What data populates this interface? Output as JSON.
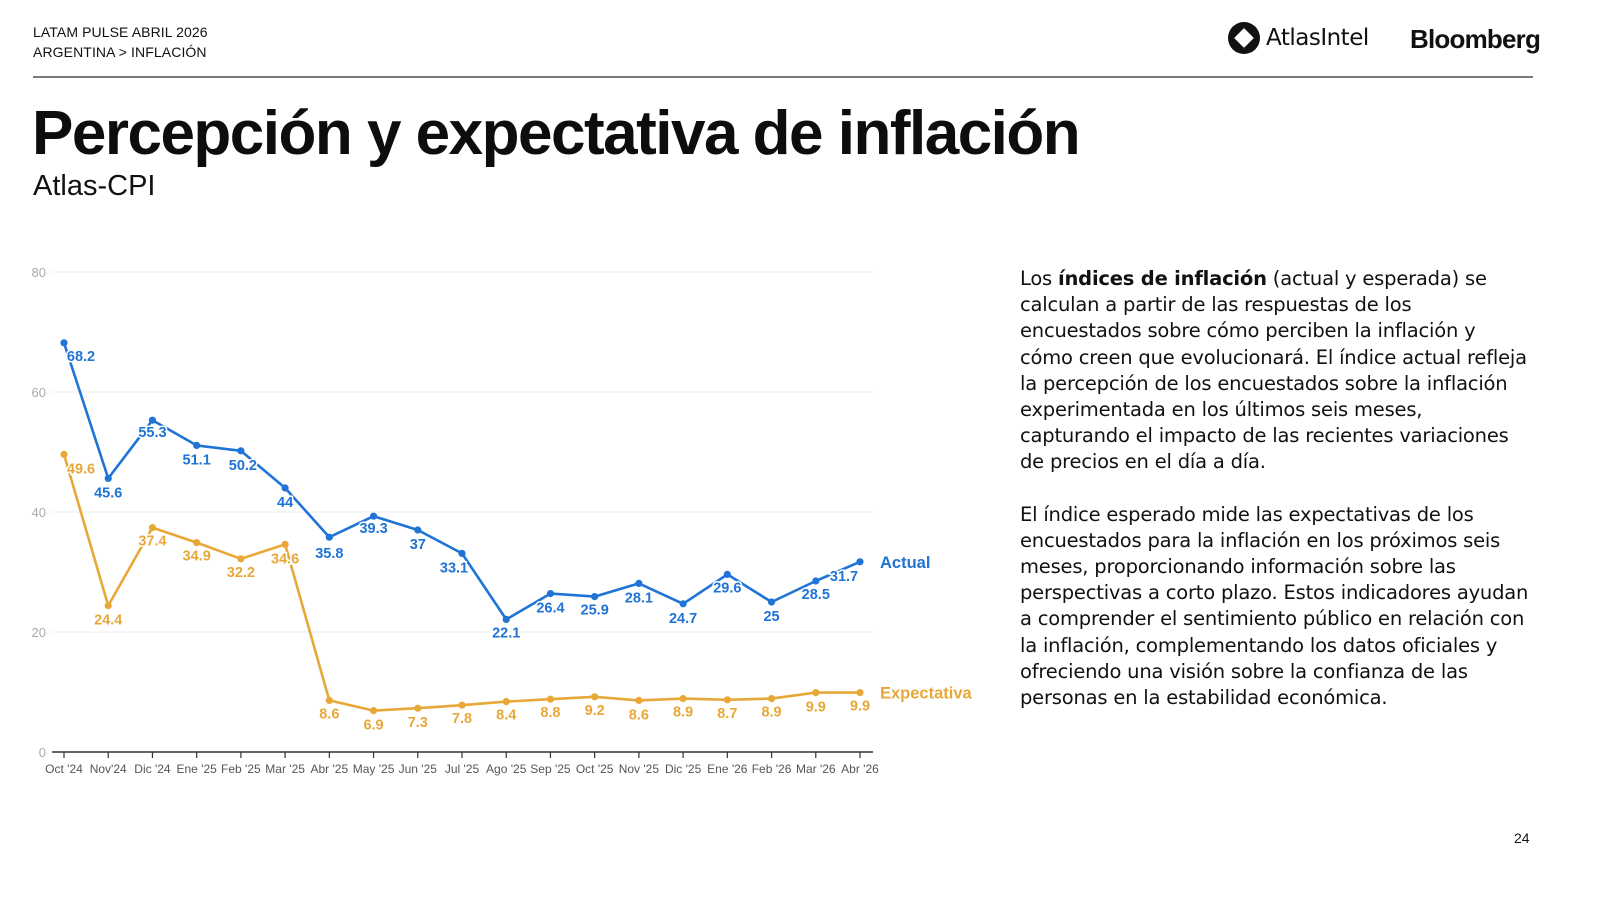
{
  "header": {
    "line1": "LATAM PULSE ABRIL 2026",
    "line2": "ARGENTINA > INFLACIÓN",
    "logos": {
      "atlas": "AtlasIntel",
      "atlas_icon": "atlasintel-logo-icon",
      "bloomberg": "Bloomberg"
    }
  },
  "title": "Percepción y expectativa de inflación",
  "subtitle": "Atlas-CPI",
  "description": {
    "p1_bold": "índices de inflación",
    "p1_pre": "Los ",
    "p1_post": " (actual y esperada) se calculan a partir de las respuestas de los encuestados sobre cómo perciben la inflación y cómo creen que evolucionará. El índice actual refleja la percepción de los encuestados sobre la inflación experimentada en los últimos seis meses, capturando el impacto de las recientes variaciones de precios en el día a día.",
    "p2": "El índice esperado mide las expectativas de los encuestados para la inflación en los próximos seis meses, proporcionando información sobre las perspectivas a corto plazo. Estos indicadores ayudan a comprender el sentimiento público en relación con la inflación, complementando los datos oficiales y ofreciendo una visión sobre la confianza de las personas en la estabilidad económica."
  },
  "page_number": "24",
  "colors": {
    "actual": "#1f74d6",
    "expectativa": "#e8a838",
    "grid": "#ececec",
    "axis": "#333333",
    "tick_label": "#aaaaaa"
  },
  "chart_data": {
    "type": "line",
    "title": "",
    "xlabel": "",
    "ylabel": "",
    "ylim": [
      0,
      80
    ],
    "yticks": [
      0,
      20,
      40,
      60,
      80
    ],
    "grid": true,
    "legend": "inline-right",
    "categories": [
      "Oct '24",
      "Nov'24",
      "Dic '24",
      "Ene '25",
      "Feb '25",
      "Mar '25",
      "Abr '25",
      "May '25",
      "Jun '25",
      "Jul '25",
      "Ago '25",
      "Sep '25",
      "Oct '25",
      "Nov '25",
      "Dic '25",
      "Ene '26",
      "Feb '26",
      "Mar '26",
      "Abr '26"
    ],
    "series": [
      {
        "name": "Actual",
        "color": "#1f74d6",
        "values": [
          68.2,
          45.6,
          55.3,
          51.1,
          50.2,
          44,
          35.8,
          39.3,
          37,
          33.1,
          22.1,
          26.4,
          25.9,
          28.1,
          24.7,
          29.6,
          25,
          28.5,
          31.7
        ]
      },
      {
        "name": "Expectativa",
        "color": "#e8a838",
        "values": [
          49.6,
          24.4,
          37.4,
          34.9,
          32.2,
          34.6,
          8.6,
          6.9,
          7.3,
          7.8,
          8.4,
          8.8,
          9.2,
          8.6,
          8.9,
          8.7,
          8.9,
          9.9,
          9.9
        ]
      }
    ]
  }
}
